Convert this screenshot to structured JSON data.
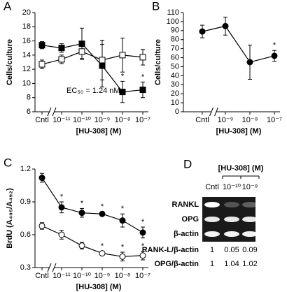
{
  "chart_data": [
    {
      "type": "line",
      "panel_label": "A",
      "ylabel": "Cells/culture",
      "xlabel": "[HU-308] (M)",
      "categories": [
        "Cntl",
        "10⁻¹¹",
        "10⁻¹⁰",
        "10⁻⁹",
        "10⁻⁸",
        "10⁻⁷"
      ],
      "series": [
        {
          "color": "#000000",
          "marker": "square",
          "fill": "#000000",
          "values": [
            15.4,
            15.0,
            15.6,
            12.5,
            8.8,
            9.1
          ],
          "errors": [
            0.5,
            0.6,
            2.2,
            3.0,
            1.5,
            1.1
          ],
          "sig": [
            null,
            null,
            null,
            null,
            "*",
            "*"
          ]
        },
        {
          "color": "#000000",
          "marker": "square",
          "fill": "#ffffff",
          "values": [
            12.7,
            13.4,
            14.5,
            13.3,
            14.0,
            13.7
          ],
          "errors": [
            0.6,
            0.6,
            1.0,
            2.8,
            2.4,
            1.1
          ],
          "sig": [
            null,
            null,
            null,
            null,
            null,
            null
          ]
        }
      ],
      "ylim": [
        6,
        20
      ],
      "yticks": [
        6,
        8,
        10,
        12,
        14,
        16,
        18,
        20
      ],
      "annotation": "EC₅₀ = 1.24 nM"
    },
    {
      "type": "line",
      "panel_label": "B",
      "ylabel": "Cells/culture",
      "xlabel": "[HU-308] (M)",
      "categories": [
        "Cntl",
        "10⁻⁹",
        "10⁻⁸",
        "10⁻⁷"
      ],
      "series": [
        {
          "color": "#000000",
          "marker": "circle",
          "fill": "#000000",
          "values": [
            89,
            95,
            55,
            62
          ],
          "errors": [
            7,
            10,
            19,
            6
          ],
          "sig": [
            null,
            null,
            null,
            "*"
          ]
        }
      ],
      "ylim": [
        0,
        110
      ],
      "yticks": [
        0,
        10,
        20,
        30,
        40,
        50,
        60,
        70,
        80,
        90,
        100,
        110
      ]
    },
    {
      "type": "line",
      "panel_label": "C",
      "ylabel": "BrdU (A₄₀₅/A₄₉₂)",
      "xlabel": "[HU-308] (M)",
      "categories": [
        "Cntl",
        "10⁻¹¹",
        "10⁻¹⁰",
        "10⁻⁹",
        "10⁻⁸",
        "10⁻⁷"
      ],
      "series": [
        {
          "color": "#000000",
          "marker": "circle",
          "fill": "#000000",
          "values": [
            1.12,
            0.85,
            0.8,
            0.79,
            0.73,
            0.62
          ],
          "errors": [
            0.04,
            0.05,
            0.04,
            0.02,
            0.06,
            0.05
          ],
          "sig": [
            null,
            "*",
            "*",
            "*",
            "*",
            "*"
          ]
        },
        {
          "color": "#000000",
          "marker": "circle",
          "fill": "#ffffff",
          "values": [
            0.68,
            0.6,
            0.5,
            0.43,
            0.4,
            0.41
          ],
          "errors": [
            0.03,
            0.04,
            0.03,
            0.02,
            0.04,
            0.04
          ],
          "sig": [
            null,
            null,
            null,
            "*",
            "*",
            "*"
          ]
        }
      ],
      "ylim": [
        0.3,
        1.2
      ],
      "yticks": [
        0.3,
        0.6,
        0.9,
        1.2
      ]
    }
  ],
  "gel_panel": {
    "panel_label": "D",
    "header": "[HU-308] (M)",
    "columns": [
      "Cntl",
      "10⁻¹⁰",
      "10⁻⁸"
    ],
    "bands": [
      "RANKL",
      "OPG",
      "β-actin"
    ],
    "ratios": [
      {
        "label": "RANK-L/β-actin",
        "values": [
          1,
          0.05,
          0.09
        ]
      },
      {
        "label": "OPG/β-actin",
        "values": [
          1,
          1.04,
          1.02
        ]
      }
    ]
  }
}
